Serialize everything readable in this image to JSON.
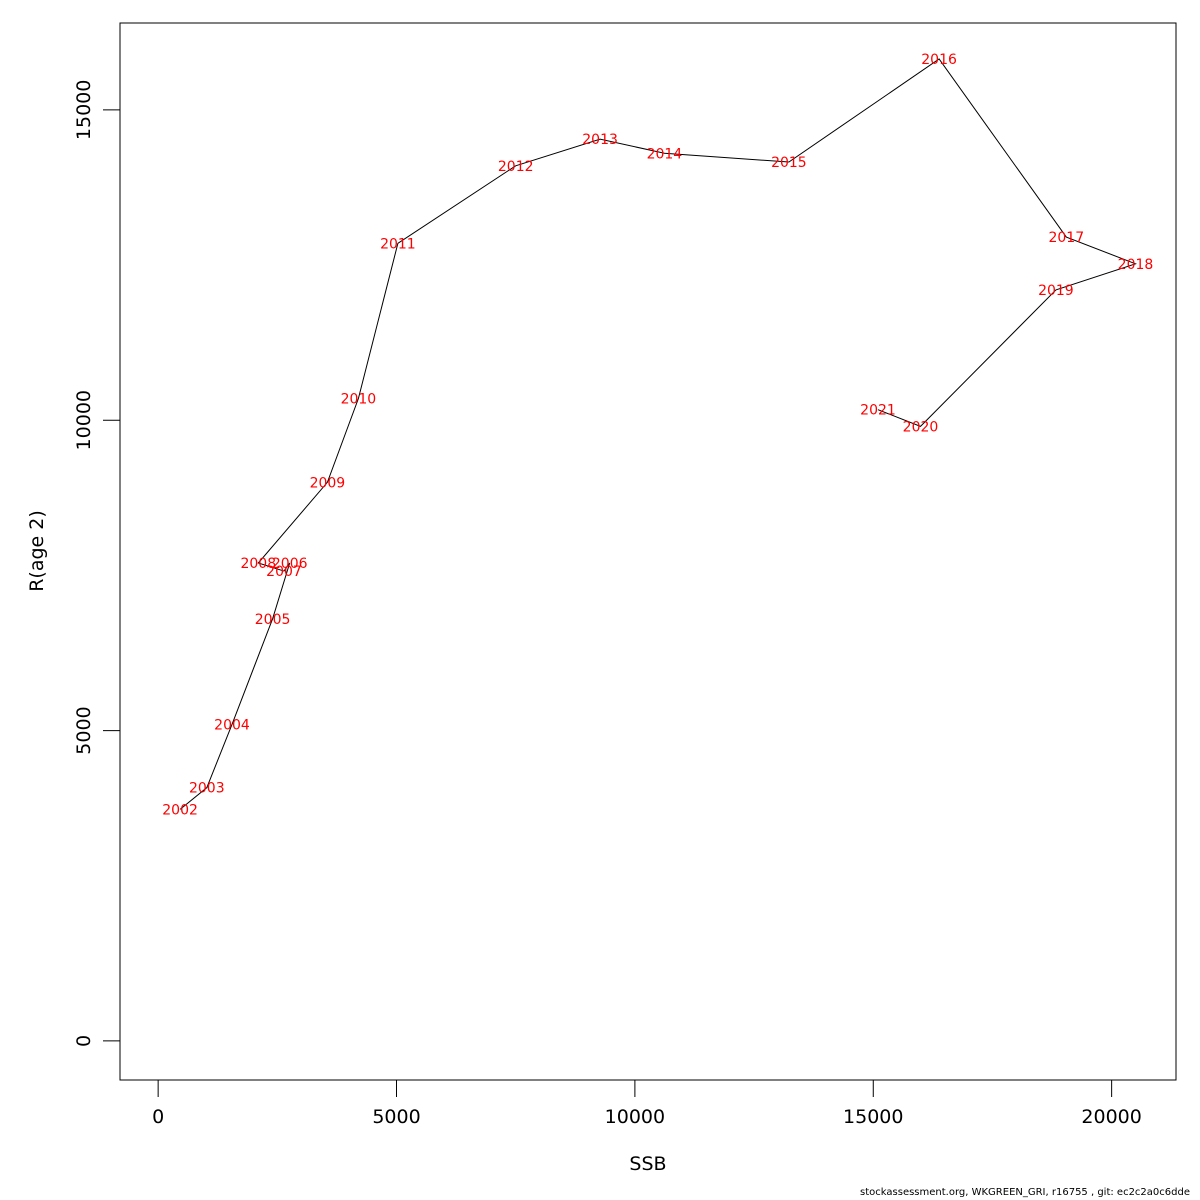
{
  "chart_data": {
    "type": "line",
    "xlabel": "SSB",
    "ylabel": "R(age 2)",
    "xlim": [
      -800,
      21350
    ],
    "ylim": [
      -630,
      16400
    ],
    "x_ticks": [
      0,
      5000,
      10000,
      15000,
      20000
    ],
    "y_ticks": [
      0,
      5000,
      10000,
      15000
    ],
    "grid": false,
    "series": [
      {
        "color": "#000000",
        "label_color": "#ff0000",
        "points": [
          {
            "label": "2002",
            "x": 460,
            "y": 3730
          },
          {
            "label": "2003",
            "x": 1020,
            "y": 4080
          },
          {
            "label": "2004",
            "x": 1550,
            "y": 5100
          },
          {
            "label": "2005",
            "x": 2400,
            "y": 6800
          },
          {
            "label": "2006",
            "x": 2760,
            "y": 7700
          },
          {
            "label": "2007",
            "x": 2640,
            "y": 7570
          },
          {
            "label": "2008",
            "x": 2100,
            "y": 7700
          },
          {
            "label": "2009",
            "x": 3550,
            "y": 9000
          },
          {
            "label": "2010",
            "x": 4200,
            "y": 10350
          },
          {
            "label": "2011",
            "x": 5030,
            "y": 12850
          },
          {
            "label": "2012",
            "x": 7500,
            "y": 14100
          },
          {
            "label": "2013",
            "x": 9270,
            "y": 14530
          },
          {
            "label": "2014",
            "x": 10620,
            "y": 14300
          },
          {
            "label": "2015",
            "x": 13230,
            "y": 14160
          },
          {
            "label": "2016",
            "x": 16380,
            "y": 15820
          },
          {
            "label": "2017",
            "x": 19050,
            "y": 12950
          },
          {
            "label": "2018",
            "x": 20500,
            "y": 12520
          },
          {
            "label": "2019",
            "x": 18830,
            "y": 12100
          },
          {
            "label": "2020",
            "x": 15990,
            "y": 9900
          },
          {
            "label": "2021",
            "x": 15100,
            "y": 10170
          }
        ]
      }
    ]
  },
  "footer": "stockassessment.org, WKGREEN_GRI, r16755 , git: ec2c2a0c6dde"
}
